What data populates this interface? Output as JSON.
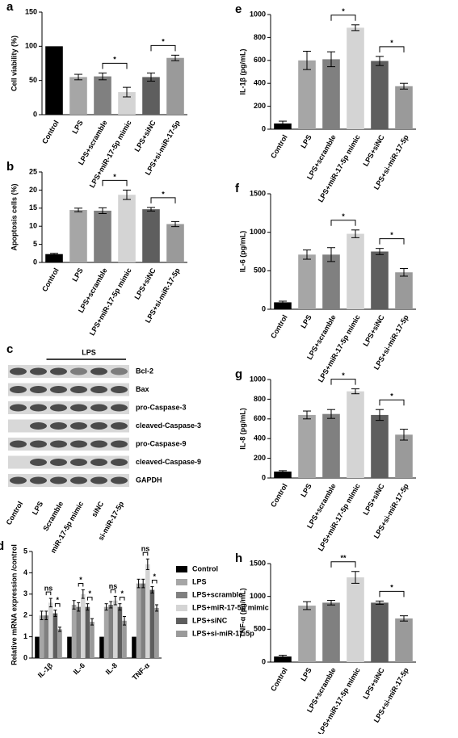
{
  "chart_data": [
    {
      "type": "bar",
      "panel": "a",
      "ylabel": "Cell viability (%)",
      "categories": [
        "Control",
        "LPS",
        "LPS+scramble",
        "LPS+miR-17-5p mimic",
        "LPS+siNC",
        "LPS+si-miR-17-5p"
      ],
      "values": [
        100,
        55,
        56,
        33,
        55,
        83
      ],
      "errors": [
        0,
        4,
        5,
        7,
        6,
        4
      ],
      "colors": [
        "#000000",
        "#a6a6a6",
        "#808080",
        "#d4d4d4",
        "#5e5e5e",
        "#9a9a9a"
      ],
      "ylim": [
        0,
        150
      ],
      "yticks": [
        0,
        50,
        100,
        150
      ],
      "annotations": [
        {
          "text": "*",
          "between": [
            "LPS+scramble",
            "LPS+miR-17-5p mimic"
          ]
        },
        {
          "text": "*",
          "between": [
            "LPS+siNC",
            "LPS+si-miR-17-5p"
          ]
        }
      ]
    },
    {
      "type": "bar",
      "panel": "b",
      "ylabel": "Apoptosis cells (%)",
      "categories": [
        "Control",
        "LPS",
        "LPS+scramble",
        "LPS+miR-17-5p mimic",
        "LPS+siNC",
        "LPS+si-miR-17-5p"
      ],
      "values": [
        2.3,
        14.5,
        14.3,
        18.7,
        14.7,
        10.6
      ],
      "errors": [
        0.2,
        0.5,
        0.8,
        1.3,
        0.5,
        0.7
      ],
      "colors": [
        "#000000",
        "#a6a6a6",
        "#808080",
        "#d4d4d4",
        "#5e5e5e",
        "#9a9a9a"
      ],
      "ylim": [
        0,
        25
      ],
      "yticks": [
        0,
        5,
        10,
        15,
        20,
        25
      ],
      "annotations": [
        {
          "text": "*",
          "between": [
            "LPS+scramble",
            "LPS+miR-17-5p mimic"
          ]
        },
        {
          "text": "*",
          "between": [
            "LPS+siNC",
            "LPS+si-miR-17-5p"
          ]
        }
      ]
    },
    {
      "type": "grouped_bar",
      "panel": "d",
      "ylabel": "Relative mRNA expression /control",
      "categories": [
        "IL-1β",
        "IL-6",
        "IL-8",
        "TNF-α"
      ],
      "series": [
        {
          "name": "Control",
          "color": "#000000",
          "values": [
            1,
            1,
            1,
            1
          ],
          "errors": [
            0,
            0,
            0,
            0
          ]
        },
        {
          "name": "LPS",
          "color": "#a6a6a6",
          "values": [
            2.0,
            2.5,
            2.4,
            3.5
          ],
          "errors": [
            0.2,
            0.2,
            0.15,
            0.2
          ]
        },
        {
          "name": "LPS+scramble",
          "color": "#808080",
          "values": [
            2.0,
            2.4,
            2.5,
            3.5
          ],
          "errors": [
            0.2,
            0.2,
            0.15,
            0.2
          ]
        },
        {
          "name": "LPS+miR-17-5p mimic",
          "color": "#d4d4d4",
          "values": [
            2.6,
            3.0,
            2.7,
            4.4
          ],
          "errors": [
            0.2,
            0.2,
            0.2,
            0.25
          ]
        },
        {
          "name": "LPS+siNC",
          "color": "#5e5e5e",
          "values": [
            2.1,
            2.4,
            2.4,
            3.2
          ],
          "errors": [
            0.15,
            0.15,
            0.15,
            0.15
          ]
        },
        {
          "name": "LPS+si-miR-17-5p",
          "color": "#9a9a9a",
          "values": [
            1.35,
            1.7,
            1.75,
            2.35
          ],
          "errors": [
            0.1,
            0.15,
            0.2,
            0.15
          ]
        }
      ],
      "ylim": [
        0,
        5
      ],
      "yticks": [
        0,
        1,
        2,
        3,
        4,
        5
      ],
      "annotations": [
        {
          "category": "IL-1β",
          "text": "ns",
          "between": [
            "LPS+scramble",
            "LPS+miR-17-5p mimic"
          ]
        },
        {
          "category": "IL-1β",
          "text": "*",
          "between": [
            "LPS+siNC",
            "LPS+si-miR-17-5p"
          ]
        },
        {
          "category": "IL-6",
          "text": "*",
          "between": [
            "LPS+scramble",
            "LPS+miR-17-5p mimic"
          ]
        },
        {
          "category": "IL-6",
          "text": "*",
          "between": [
            "LPS+siNC",
            "LPS+si-miR-17-5p"
          ]
        },
        {
          "category": "IL-8",
          "text": "ns",
          "between": [
            "LPS+scramble",
            "LPS+miR-17-5p mimic"
          ]
        },
        {
          "category": "IL-8",
          "text": "*",
          "between": [
            "LPS+siNC",
            "LPS+si-miR-17-5p"
          ]
        },
        {
          "category": "TNF-α",
          "text": "ns",
          "between": [
            "LPS+scramble",
            "LPS+miR-17-5p mimic"
          ]
        },
        {
          "category": "TNF-α",
          "text": "*",
          "between": [
            "LPS+siNC",
            "LPS+si-miR-17-5p"
          ]
        }
      ]
    },
    {
      "type": "bar",
      "panel": "e",
      "ylabel": "IL-1β (pg/mL)",
      "categories": [
        "Control",
        "LPS",
        "LPS+scramble",
        "LPS+miR-17-5p mimic",
        "LPS+siNC",
        "LPS+si-miR-17-5p"
      ],
      "values": [
        50,
        600,
        610,
        885,
        595,
        375
      ],
      "errors": [
        20,
        80,
        65,
        25,
        40,
        25
      ],
      "colors": [
        "#000000",
        "#a6a6a6",
        "#808080",
        "#d4d4d4",
        "#5e5e5e",
        "#9a9a9a"
      ],
      "ylim": [
        0,
        1000
      ],
      "yticks": [
        0,
        200,
        400,
        600,
        800,
        1000
      ],
      "annotations": [
        {
          "text": "*",
          "between": [
            "LPS+scramble",
            "LPS+miR-17-5p mimic"
          ]
        },
        {
          "text": "*",
          "between": [
            "LPS+siNC",
            "LPS+si-miR-17-5p"
          ]
        }
      ]
    },
    {
      "type": "bar",
      "panel": "f",
      "ylabel": "IL-6  (pg/mL)",
      "categories": [
        "Control",
        "LPS",
        "LPS+scramble",
        "LPS+miR-17-5p mimic",
        "LPS+siNC",
        "LPS+si-miR-17-5p"
      ],
      "values": [
        90,
        710,
        710,
        980,
        750,
        480
      ],
      "errors": [
        15,
        60,
        90,
        50,
        40,
        50
      ],
      "colors": [
        "#000000",
        "#a6a6a6",
        "#808080",
        "#d4d4d4",
        "#5e5e5e",
        "#9a9a9a"
      ],
      "ylim": [
        0,
        1500
      ],
      "yticks": [
        0,
        500,
        1000,
        1500
      ],
      "annotations": [
        {
          "text": "*",
          "between": [
            "LPS+scramble",
            "LPS+miR-17-5p mimic"
          ]
        },
        {
          "text": "*",
          "between": [
            "LPS+siNC",
            "LPS+si-miR-17-5p"
          ]
        }
      ]
    },
    {
      "type": "bar",
      "panel": "g",
      "ylabel": "IL-8  (pg/mL)",
      "categories": [
        "Control",
        "LPS",
        "LPS+scramble",
        "LPS+miR-17-5p mimic",
        "LPS+siNC",
        "LPS+si-miR-17-5p"
      ],
      "values": [
        65,
        640,
        650,
        880,
        640,
        440
      ],
      "errors": [
        10,
        40,
        45,
        25,
        55,
        55
      ],
      "colors": [
        "#000000",
        "#a6a6a6",
        "#808080",
        "#d4d4d4",
        "#5e5e5e",
        "#9a9a9a"
      ],
      "ylim": [
        0,
        1000
      ],
      "yticks": [
        0,
        200,
        400,
        600,
        800,
        1000
      ],
      "annotations": [
        {
          "text": "*",
          "between": [
            "LPS+scramble",
            "LPS+miR-17-5p mimic"
          ]
        },
        {
          "text": "*",
          "between": [
            "LPS+siNC",
            "LPS+si-miR-17-5p"
          ]
        }
      ]
    },
    {
      "type": "bar",
      "panel": "h",
      "ylabel": "TNF-α  (pg/mL)",
      "categories": [
        "Control",
        "LPS",
        "LPS+scramble",
        "LPS+miR-17-5p mimic",
        "LPS+siNC",
        "LPS+si-miR-17-5p"
      ],
      "values": [
        85,
        860,
        905,
        1290,
        905,
        665
      ],
      "errors": [
        20,
        60,
        35,
        90,
        25,
        40
      ],
      "colors": [
        "#000000",
        "#a6a6a6",
        "#808080",
        "#d4d4d4",
        "#5e5e5e",
        "#9a9a9a"
      ],
      "ylim": [
        0,
        1500
      ],
      "yticks": [
        0,
        500,
        1000,
        1500
      ],
      "annotations": [
        {
          "text": "**",
          "between": [
            "LPS+scramble",
            "LPS+miR-17-5p mimic"
          ]
        },
        {
          "text": "*",
          "between": [
            "LPS+siNC",
            "LPS+si-miR-17-5p"
          ]
        }
      ]
    }
  ],
  "blot": {
    "panel": "c",
    "treatment": "LPS",
    "bands": [
      "Bcl-2",
      "Bax",
      "pro-Caspase-3",
      "cleaved-Caspase-3",
      "pro-Caspase-9",
      "cleaved-Caspase-9",
      "GAPDH"
    ],
    "lanes": [
      "Control",
      "LPS",
      "Scramble",
      "miR-17-5p mimic",
      "siNC",
      "si-miR-17-5p"
    ]
  }
}
